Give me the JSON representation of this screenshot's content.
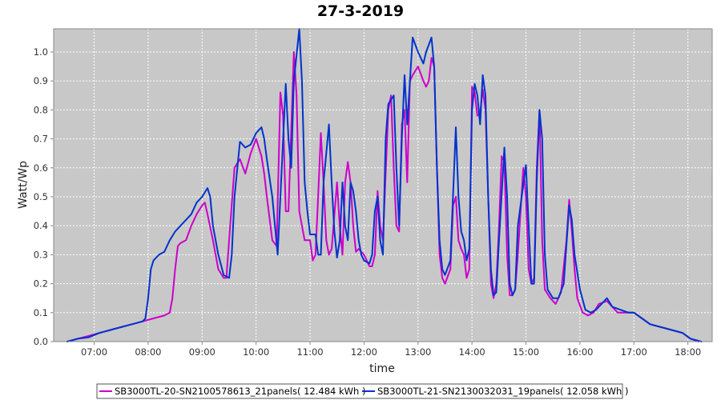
{
  "chart_data": {
    "type": "line",
    "title": "27-3-2019",
    "xlabel": "time",
    "ylabel": "Watt/Wp",
    "x_ticks": [
      "07:00",
      "08:00",
      "09:00",
      "10:00",
      "11:00",
      "12:00",
      "13:00",
      "14:00",
      "15:00",
      "16:00",
      "17:00",
      "18:00"
    ],
    "x_tick_values": [
      7,
      8,
      9,
      10,
      11,
      12,
      13,
      14,
      15,
      16,
      17,
      18
    ],
    "xlim": [
      6.25,
      18.45
    ],
    "ylim": [
      0,
      1.08
    ],
    "y_ticks": [
      0.0,
      0.1,
      0.2,
      0.3,
      0.4,
      0.5,
      0.6,
      0.7,
      0.8,
      0.9,
      1.0
    ],
    "y_tick_labels": [
      "0.0",
      "0.1",
      "0.2",
      "0.3",
      "0.4",
      "0.5",
      "0.6",
      "0.7",
      "0.8",
      "0.9",
      "1.0"
    ],
    "grid": true,
    "legend_position": "bottom",
    "series": [
      {
        "name": "SB3000TL-20-SN2100578613_21panels( 12.484 kWh )",
        "color": "#cc00cc",
        "points": [
          [
            6.5,
            0.0
          ],
          [
            6.7,
            0.01
          ],
          [
            6.9,
            0.02
          ],
          [
            7.1,
            0.03
          ],
          [
            7.3,
            0.04
          ],
          [
            7.5,
            0.05
          ],
          [
            7.7,
            0.06
          ],
          [
            7.9,
            0.07
          ],
          [
            8.1,
            0.08
          ],
          [
            8.3,
            0.09
          ],
          [
            8.4,
            0.1
          ],
          [
            8.45,
            0.15
          ],
          [
            8.5,
            0.25
          ],
          [
            8.55,
            0.33
          ],
          [
            8.6,
            0.34
          ],
          [
            8.7,
            0.35
          ],
          [
            8.8,
            0.4
          ],
          [
            8.9,
            0.44
          ],
          [
            9.0,
            0.47
          ],
          [
            9.05,
            0.48
          ],
          [
            9.1,
            0.44
          ],
          [
            9.2,
            0.35
          ],
          [
            9.3,
            0.25
          ],
          [
            9.4,
            0.22
          ],
          [
            9.45,
            0.22
          ],
          [
            9.5,
            0.35
          ],
          [
            9.6,
            0.6
          ],
          [
            9.7,
            0.63
          ],
          [
            9.8,
            0.58
          ],
          [
            9.9,
            0.65
          ],
          [
            10.0,
            0.7
          ],
          [
            10.1,
            0.64
          ],
          [
            10.15,
            0.58
          ],
          [
            10.2,
            0.5
          ],
          [
            10.3,
            0.35
          ],
          [
            10.38,
            0.33
          ],
          [
            10.45,
            0.86
          ],
          [
            10.5,
            0.78
          ],
          [
            10.55,
            0.45
          ],
          [
            10.6,
            0.45
          ],
          [
            10.7,
            1.0
          ],
          [
            10.75,
            0.85
          ],
          [
            10.8,
            0.45
          ],
          [
            10.85,
            0.4
          ],
          [
            10.9,
            0.35
          ],
          [
            11.0,
            0.35
          ],
          [
            11.05,
            0.28
          ],
          [
            11.1,
            0.3
          ],
          [
            11.15,
            0.5
          ],
          [
            11.2,
            0.72
          ],
          [
            11.25,
            0.55
          ],
          [
            11.3,
            0.35
          ],
          [
            11.35,
            0.3
          ],
          [
            11.4,
            0.32
          ],
          [
            11.5,
            0.55
          ],
          [
            11.55,
            0.4
          ],
          [
            11.6,
            0.3
          ],
          [
            11.65,
            0.55
          ],
          [
            11.7,
            0.62
          ],
          [
            11.75,
            0.55
          ],
          [
            11.8,
            0.4
          ],
          [
            11.85,
            0.31
          ],
          [
            11.9,
            0.32
          ],
          [
            12.0,
            0.3
          ],
          [
            12.1,
            0.26
          ],
          [
            12.15,
            0.26
          ],
          [
            12.2,
            0.3
          ],
          [
            12.25,
            0.52
          ],
          [
            12.3,
            0.4
          ],
          [
            12.35,
            0.35
          ],
          [
            12.45,
            0.8
          ],
          [
            12.5,
            0.85
          ],
          [
            12.55,
            0.6
          ],
          [
            12.6,
            0.4
          ],
          [
            12.65,
            0.38
          ],
          [
            12.7,
            0.75
          ],
          [
            12.75,
            0.8
          ],
          [
            12.8,
            0.55
          ],
          [
            12.85,
            0.9
          ],
          [
            12.9,
            0.92
          ],
          [
            13.0,
            0.95
          ],
          [
            13.1,
            0.9
          ],
          [
            13.15,
            0.88
          ],
          [
            13.2,
            0.9
          ],
          [
            13.25,
            0.98
          ],
          [
            13.3,
            0.95
          ],
          [
            13.35,
            0.6
          ],
          [
            13.4,
            0.3
          ],
          [
            13.45,
            0.22
          ],
          [
            13.5,
            0.2
          ],
          [
            13.6,
            0.25
          ],
          [
            13.65,
            0.47
          ],
          [
            13.7,
            0.5
          ],
          [
            13.75,
            0.35
          ],
          [
            13.8,
            0.32
          ],
          [
            13.85,
            0.3
          ],
          [
            13.9,
            0.22
          ],
          [
            13.95,
            0.25
          ],
          [
            14.0,
            0.88
          ],
          [
            14.05,
            0.86
          ],
          [
            14.1,
            0.78
          ],
          [
            14.15,
            0.79
          ],
          [
            14.2,
            0.87
          ],
          [
            14.25,
            0.8
          ],
          [
            14.3,
            0.5
          ],
          [
            14.35,
            0.2
          ],
          [
            14.4,
            0.15
          ],
          [
            14.45,
            0.2
          ],
          [
            14.5,
            0.4
          ],
          [
            14.55,
            0.64
          ],
          [
            14.6,
            0.62
          ],
          [
            14.65,
            0.3
          ],
          [
            14.7,
            0.16
          ],
          [
            14.75,
            0.16
          ],
          [
            14.8,
            0.18
          ],
          [
            14.85,
            0.3
          ],
          [
            14.95,
            0.6
          ],
          [
            15.0,
            0.5
          ],
          [
            15.05,
            0.25
          ],
          [
            15.1,
            0.2
          ],
          [
            15.15,
            0.22
          ],
          [
            15.2,
            0.6
          ],
          [
            15.25,
            0.8
          ],
          [
            15.3,
            0.35
          ],
          [
            15.35,
            0.18
          ],
          [
            15.45,
            0.15
          ],
          [
            15.55,
            0.13
          ],
          [
            15.65,
            0.17
          ],
          [
            15.75,
            0.35
          ],
          [
            15.8,
            0.49
          ],
          [
            15.85,
            0.38
          ],
          [
            15.9,
            0.25
          ],
          [
            15.95,
            0.15
          ],
          [
            16.05,
            0.1
          ],
          [
            16.15,
            0.09
          ],
          [
            16.25,
            0.1
          ],
          [
            16.35,
            0.13
          ],
          [
            16.5,
            0.14
          ],
          [
            16.6,
            0.12
          ],
          [
            16.7,
            0.1
          ],
          [
            16.85,
            0.1
          ],
          [
            17.0,
            0.1
          ],
          [
            17.15,
            0.08
          ],
          [
            17.3,
            0.06
          ],
          [
            17.5,
            0.05
          ],
          [
            17.7,
            0.04
          ],
          [
            17.9,
            0.03
          ],
          [
            18.05,
            0.01
          ],
          [
            18.2,
            0.0
          ]
        ]
      },
      {
        "name": "SB3000TL-21-SN2130032031_19panels( 12.058 kWh )",
        "color": "#0033cc",
        "points": [
          [
            6.5,
            0.0
          ],
          [
            6.7,
            0.01
          ],
          [
            6.9,
            0.015
          ],
          [
            7.1,
            0.03
          ],
          [
            7.3,
            0.04
          ],
          [
            7.5,
            0.05
          ],
          [
            7.7,
            0.06
          ],
          [
            7.9,
            0.07
          ],
          [
            7.95,
            0.08
          ],
          [
            8.0,
            0.15
          ],
          [
            8.05,
            0.25
          ],
          [
            8.1,
            0.28
          ],
          [
            8.2,
            0.3
          ],
          [
            8.3,
            0.31
          ],
          [
            8.4,
            0.35
          ],
          [
            8.5,
            0.38
          ],
          [
            8.6,
            0.4
          ],
          [
            8.7,
            0.42
          ],
          [
            8.8,
            0.44
          ],
          [
            8.9,
            0.48
          ],
          [
            9.0,
            0.5
          ],
          [
            9.1,
            0.53
          ],
          [
            9.15,
            0.5
          ],
          [
            9.2,
            0.4
          ],
          [
            9.3,
            0.3
          ],
          [
            9.4,
            0.23
          ],
          [
            9.5,
            0.22
          ],
          [
            9.55,
            0.3
          ],
          [
            9.6,
            0.5
          ],
          [
            9.7,
            0.69
          ],
          [
            9.8,
            0.67
          ],
          [
            9.9,
            0.68
          ],
          [
            10.0,
            0.72
          ],
          [
            10.1,
            0.74
          ],
          [
            10.15,
            0.7
          ],
          [
            10.2,
            0.63
          ],
          [
            10.3,
            0.5
          ],
          [
            10.4,
            0.3
          ],
          [
            10.45,
            0.5
          ],
          [
            10.55,
            0.89
          ],
          [
            10.6,
            0.7
          ],
          [
            10.65,
            0.6
          ],
          [
            10.7,
            0.9
          ],
          [
            10.8,
            1.08
          ],
          [
            10.85,
            0.9
          ],
          [
            10.9,
            0.55
          ],
          [
            10.95,
            0.45
          ],
          [
            11.0,
            0.37
          ],
          [
            11.1,
            0.37
          ],
          [
            11.15,
            0.3
          ],
          [
            11.2,
            0.3
          ],
          [
            11.25,
            0.55
          ],
          [
            11.35,
            0.75
          ],
          [
            11.4,
            0.55
          ],
          [
            11.45,
            0.38
          ],
          [
            11.5,
            0.29
          ],
          [
            11.55,
            0.35
          ],
          [
            11.6,
            0.55
          ],
          [
            11.65,
            0.4
          ],
          [
            11.7,
            0.35
          ],
          [
            11.75,
            0.55
          ],
          [
            11.8,
            0.52
          ],
          [
            11.85,
            0.45
          ],
          [
            11.9,
            0.35
          ],
          [
            11.95,
            0.3
          ],
          [
            12.0,
            0.28
          ],
          [
            12.1,
            0.27
          ],
          [
            12.15,
            0.3
          ],
          [
            12.2,
            0.45
          ],
          [
            12.25,
            0.5
          ],
          [
            12.3,
            0.35
          ],
          [
            12.35,
            0.3
          ],
          [
            12.4,
            0.7
          ],
          [
            12.45,
            0.82
          ],
          [
            12.55,
            0.85
          ],
          [
            12.6,
            0.6
          ],
          [
            12.65,
            0.4
          ],
          [
            12.7,
            0.7
          ],
          [
            12.75,
            0.92
          ],
          [
            12.8,
            0.75
          ],
          [
            12.9,
            1.05
          ],
          [
            13.0,
            1.0
          ],
          [
            13.1,
            0.96
          ],
          [
            13.15,
            1.0
          ],
          [
            13.25,
            1.05
          ],
          [
            13.3,
            0.95
          ],
          [
            13.35,
            0.6
          ],
          [
            13.4,
            0.35
          ],
          [
            13.45,
            0.25
          ],
          [
            13.5,
            0.23
          ],
          [
            13.6,
            0.28
          ],
          [
            13.7,
            0.74
          ],
          [
            13.75,
            0.5
          ],
          [
            13.8,
            0.38
          ],
          [
            13.85,
            0.35
          ],
          [
            13.9,
            0.28
          ],
          [
            13.95,
            0.32
          ],
          [
            14.0,
            0.8
          ],
          [
            14.05,
            0.89
          ],
          [
            14.1,
            0.85
          ],
          [
            14.15,
            0.75
          ],
          [
            14.2,
            0.92
          ],
          [
            14.25,
            0.85
          ],
          [
            14.3,
            0.5
          ],
          [
            14.35,
            0.25
          ],
          [
            14.4,
            0.16
          ],
          [
            14.45,
            0.17
          ],
          [
            14.5,
            0.35
          ],
          [
            14.6,
            0.67
          ],
          [
            14.65,
            0.5
          ],
          [
            14.7,
            0.2
          ],
          [
            14.75,
            0.16
          ],
          [
            14.8,
            0.18
          ],
          [
            14.85,
            0.4
          ],
          [
            15.0,
            0.61
          ],
          [
            15.05,
            0.4
          ],
          [
            15.1,
            0.2
          ],
          [
            15.15,
            0.2
          ],
          [
            15.2,
            0.55
          ],
          [
            15.25,
            0.8
          ],
          [
            15.3,
            0.7
          ],
          [
            15.35,
            0.3
          ],
          [
            15.4,
            0.18
          ],
          [
            15.5,
            0.15
          ],
          [
            15.6,
            0.15
          ],
          [
            15.7,
            0.2
          ],
          [
            15.8,
            0.47
          ],
          [
            15.85,
            0.42
          ],
          [
            15.9,
            0.3
          ],
          [
            16.0,
            0.18
          ],
          [
            16.1,
            0.11
          ],
          [
            16.2,
            0.1
          ],
          [
            16.3,
            0.11
          ],
          [
            16.4,
            0.13
          ],
          [
            16.5,
            0.15
          ],
          [
            16.6,
            0.12
          ],
          [
            16.75,
            0.11
          ],
          [
            16.9,
            0.1
          ],
          [
            17.0,
            0.1
          ],
          [
            17.15,
            0.08
          ],
          [
            17.3,
            0.06
          ],
          [
            17.5,
            0.05
          ],
          [
            17.7,
            0.04
          ],
          [
            17.9,
            0.03
          ],
          [
            18.05,
            0.01
          ],
          [
            18.25,
            0.0
          ]
        ]
      }
    ]
  }
}
